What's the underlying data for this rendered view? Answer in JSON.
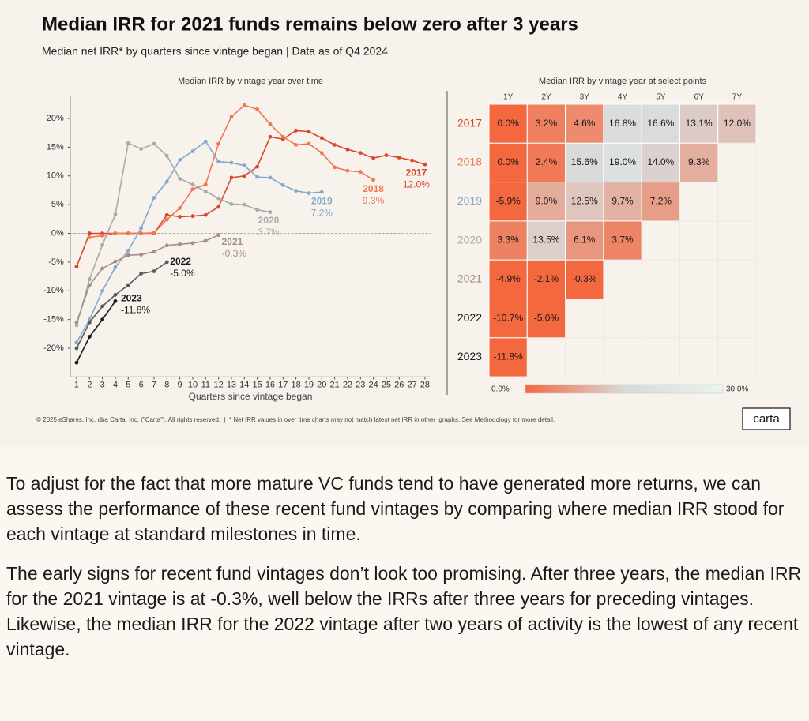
{
  "header": {
    "title": "Median IRR for 2021 funds remains below zero after 3 years",
    "subtitle": "Median net IRR* by quarters since vintage began | Data as of Q4 2024"
  },
  "chart_data": [
    {
      "type": "line",
      "title": "Median IRR by vintage year over time",
      "xlabel": "Quarters since vintage began",
      "x": [
        1,
        2,
        3,
        4,
        5,
        6,
        7,
        8,
        9,
        10,
        11,
        12,
        13,
        14,
        15,
        16,
        17,
        18,
        19,
        20,
        21,
        22,
        23,
        24,
        25,
        26,
        27,
        28
      ],
      "xlim": [
        0.5,
        28.5
      ],
      "xticks": [
        1,
        2,
        3,
        4,
        5,
        6,
        7,
        8,
        9,
        10,
        11,
        12,
        13,
        14,
        15,
        16,
        17,
        18,
        19,
        20,
        21,
        22,
        23,
        24,
        25,
        26,
        27,
        28
      ],
      "ylim": [
        -25,
        24
      ],
      "yticks": [
        {
          "value": -20,
          "label": "-20%"
        },
        {
          "value": -15,
          "label": "-15%"
        },
        {
          "value": -10,
          "label": "-10%"
        },
        {
          "value": -5,
          "label": "-5%"
        },
        {
          "value": 0,
          "label": "0%"
        },
        {
          "value": 5,
          "label": "5%"
        },
        {
          "value": 10,
          "label": "10%"
        },
        {
          "value": 15,
          "label": "15%"
        },
        {
          "value": 20,
          "label": "20%"
        }
      ],
      "series": [
        {
          "name": "2017",
          "color": "#d9472b",
          "values": [
            -5.8,
            0,
            0,
            0,
            0,
            0,
            0,
            3.2,
            2.9,
            3.0,
            3.2,
            4.6,
            9.7,
            10.0,
            11.6,
            16.8,
            16.4,
            17.9,
            17.7,
            16.6,
            15.4,
            14.6,
            14.0,
            13.1,
            13.6,
            13.2,
            12.7,
            12.0
          ],
          "value_labels": [
            null,
            null,
            null,
            null,
            null,
            null,
            null,
            null,
            null,
            null,
            null,
            null,
            null,
            null,
            null,
            null,
            null,
            null,
            null,
            null,
            null,
            null,
            null,
            null,
            null,
            null,
            null,
            "12.0%"
          ]
        },
        {
          "name": "2018",
          "color": "#f07850",
          "values": [
            null,
            -0.7,
            -0.4,
            0,
            0,
            0,
            0.1,
            2.4,
            4.4,
            7.7,
            8.5,
            15.6,
            20.3,
            22.3,
            21.6,
            19.0,
            16.8,
            15.4,
            15.6,
            14.0,
            11.5,
            10.9,
            10.7,
            9.3,
            null,
            null,
            null,
            null
          ],
          "value_labels": [
            null,
            null,
            null,
            null,
            null,
            null,
            null,
            null,
            null,
            null,
            null,
            null,
            null,
            null,
            null,
            null,
            null,
            null,
            null,
            null,
            null,
            null,
            null,
            "9.3%",
            null,
            null,
            null,
            null
          ]
        },
        {
          "name": "2019",
          "color": "#86a8cb",
          "values": [
            -19.0,
            -15.0,
            -10.0,
            -5.9,
            -3.0,
            0.9,
            6.2,
            9.0,
            12.8,
            14.3,
            16.0,
            12.5,
            12.3,
            11.8,
            9.8,
            9.7,
            8.4,
            7.4,
            7.0,
            7.2,
            null,
            null,
            null,
            null,
            null,
            null,
            null,
            null
          ],
          "value_labels": [
            null,
            null,
            null,
            null,
            null,
            null,
            null,
            null,
            null,
            null,
            null,
            null,
            null,
            null,
            null,
            null,
            null,
            null,
            null,
            "7.2%",
            null,
            null,
            null,
            null,
            null,
            null,
            null,
            null
          ]
        },
        {
          "name": "2020",
          "color": "#a9a9a9",
          "values": [
            -16.0,
            -8.0,
            -2.0,
            3.3,
            15.7,
            14.7,
            15.6,
            13.5,
            9.5,
            8.5,
            7.3,
            6.1,
            5.1,
            5.0,
            4.1,
            3.7,
            null,
            null,
            null,
            null,
            null,
            null,
            null,
            null,
            null,
            null,
            null,
            null
          ],
          "value_labels": [
            null,
            null,
            null,
            null,
            null,
            null,
            null,
            null,
            null,
            null,
            null,
            null,
            null,
            null,
            null,
            "3.7%",
            null,
            null,
            null,
            null,
            null,
            null,
            null,
            null,
            null,
            null,
            null,
            null
          ]
        },
        {
          "name": "2021",
          "color": "#a58e86",
          "values": [
            -15.5,
            -9.0,
            -6.1,
            -4.9,
            -3.8,
            -3.7,
            -3.2,
            -2.1,
            -1.9,
            -1.7,
            -1.3,
            -0.3,
            null,
            null,
            null,
            null,
            null,
            null,
            null,
            null,
            null,
            null,
            null,
            null,
            null,
            null,
            null,
            null
          ],
          "value_labels": [
            null,
            null,
            null,
            null,
            null,
            null,
            null,
            null,
            null,
            null,
            null,
            "-0.3%",
            null,
            null,
            null,
            null,
            null,
            null,
            null,
            null,
            null,
            null,
            null,
            null,
            null,
            null,
            null,
            null
          ]
        },
        {
          "name": "2022",
          "color": "#5a5a5a",
          "values": [
            -20.0,
            -15.5,
            -12.7,
            -10.7,
            -9.0,
            -7.0,
            -6.6,
            -5.0,
            null,
            null,
            null,
            null,
            null,
            null,
            null,
            null,
            null,
            null,
            null,
            null,
            null,
            null,
            null,
            null,
            null,
            null,
            null,
            null
          ],
          "value_labels": [
            null,
            null,
            null,
            null,
            null,
            null,
            null,
            "-5.0%",
            null,
            null,
            null,
            null,
            null,
            null,
            null,
            null,
            null,
            null,
            null,
            null,
            null,
            null,
            null,
            null,
            null,
            null,
            null,
            null
          ]
        },
        {
          "name": "2023",
          "color": "#1a1a1a",
          "values": [
            -22.5,
            -18.0,
            -15.0,
            -11.8,
            null,
            null,
            null,
            null,
            null,
            null,
            null,
            null,
            null,
            null,
            null,
            null,
            null,
            null,
            null,
            null,
            null,
            null,
            null,
            null,
            null,
            null,
            null,
            null
          ],
          "value_labels": [
            null,
            null,
            null,
            "-11.8%",
            null,
            null,
            null,
            null,
            null,
            null,
            null,
            null,
            null,
            null,
            null,
            null,
            null,
            null,
            null,
            null,
            null,
            null,
            null,
            null,
            null,
            null,
            null,
            null
          ]
        }
      ]
    },
    {
      "type": "heatmap",
      "title": "Median IRR by vintage year at select points",
      "columns": [
        "1Y",
        "2Y",
        "3Y",
        "4Y",
        "5Y",
        "6Y",
        "7Y"
      ],
      "rows": [
        "2017",
        "2018",
        "2019",
        "2020",
        "2021",
        "2022",
        "2023"
      ],
      "values": [
        [
          0.0,
          3.2,
          4.6,
          16.8,
          16.6,
          13.1,
          12.0
        ],
        [
          0.0,
          2.4,
          15.6,
          19.0,
          14.0,
          9.3,
          null
        ],
        [
          -5.9,
          9.0,
          12.5,
          9.7,
          7.2,
          null,
          null
        ],
        [
          3.3,
          13.5,
          6.1,
          3.7,
          null,
          null,
          null
        ],
        [
          -4.9,
          -2.1,
          -0.3,
          null,
          null,
          null,
          null
        ],
        [
          -10.7,
          -5.0,
          null,
          null,
          null,
          null,
          null
        ],
        [
          -11.8,
          null,
          null,
          null,
          null,
          null,
          null
        ]
      ],
      "value_labels": [
        [
          "0.0%",
          "3.2%",
          "4.6%",
          "16.8%",
          "16.6%",
          "13.1%",
          "12.0%"
        ],
        [
          "0.0%",
          "2.4%",
          "15.6%",
          "19.0%",
          "14.0%",
          "9.3%",
          null
        ],
        [
          "-5.9%",
          "9.0%",
          "12.5%",
          "9.7%",
          "7.2%",
          null,
          null
        ],
        [
          "3.3%",
          "13.5%",
          "6.1%",
          "3.7%",
          null,
          null,
          null
        ],
        [
          "-4.9%",
          "-2.1%",
          "-0.3%",
          null,
          null,
          null,
          null
        ],
        [
          "-10.7%",
          "-5.0%",
          null,
          null,
          null,
          null,
          null
        ],
        [
          "-11.8%",
          null,
          null,
          null,
          null,
          null,
          null
        ]
      ],
      "scale": {
        "min": {
          "value": 0,
          "label": "0.0%"
        },
        "max": {
          "value": 30,
          "label": "30.0%"
        },
        "colors": [
          "#f4683f",
          "#d9d9d9",
          "#e6f5ee"
        ]
      }
    }
  ],
  "footer": {
    "note": "© 2025 eShares, Inc. dba Carta, Inc. (\"Carta\"). All rights reserved.  |  * Net IRR values in over time charts may not match latest net IRR in other  graphs. See Methodology for more detail.",
    "logo": "carta"
  },
  "article": {
    "paragraphs": [
      "To adjust for the fact that more mature VC funds tend to have generated more returns, we can assess the performance of these recent fund vintages by comparing where median IRR stood for each vintage at standard milestones in time.",
      "The early signs for recent fund vintages don’t look too promising. After three years, the median IRR for the 2021 vintage is at -0.3%, well below the IRRs after three years for preceding vintages. Likewise, the median IRR for the 2022 vintage after two years of activity is the lowest of any recent vintage."
    ]
  }
}
